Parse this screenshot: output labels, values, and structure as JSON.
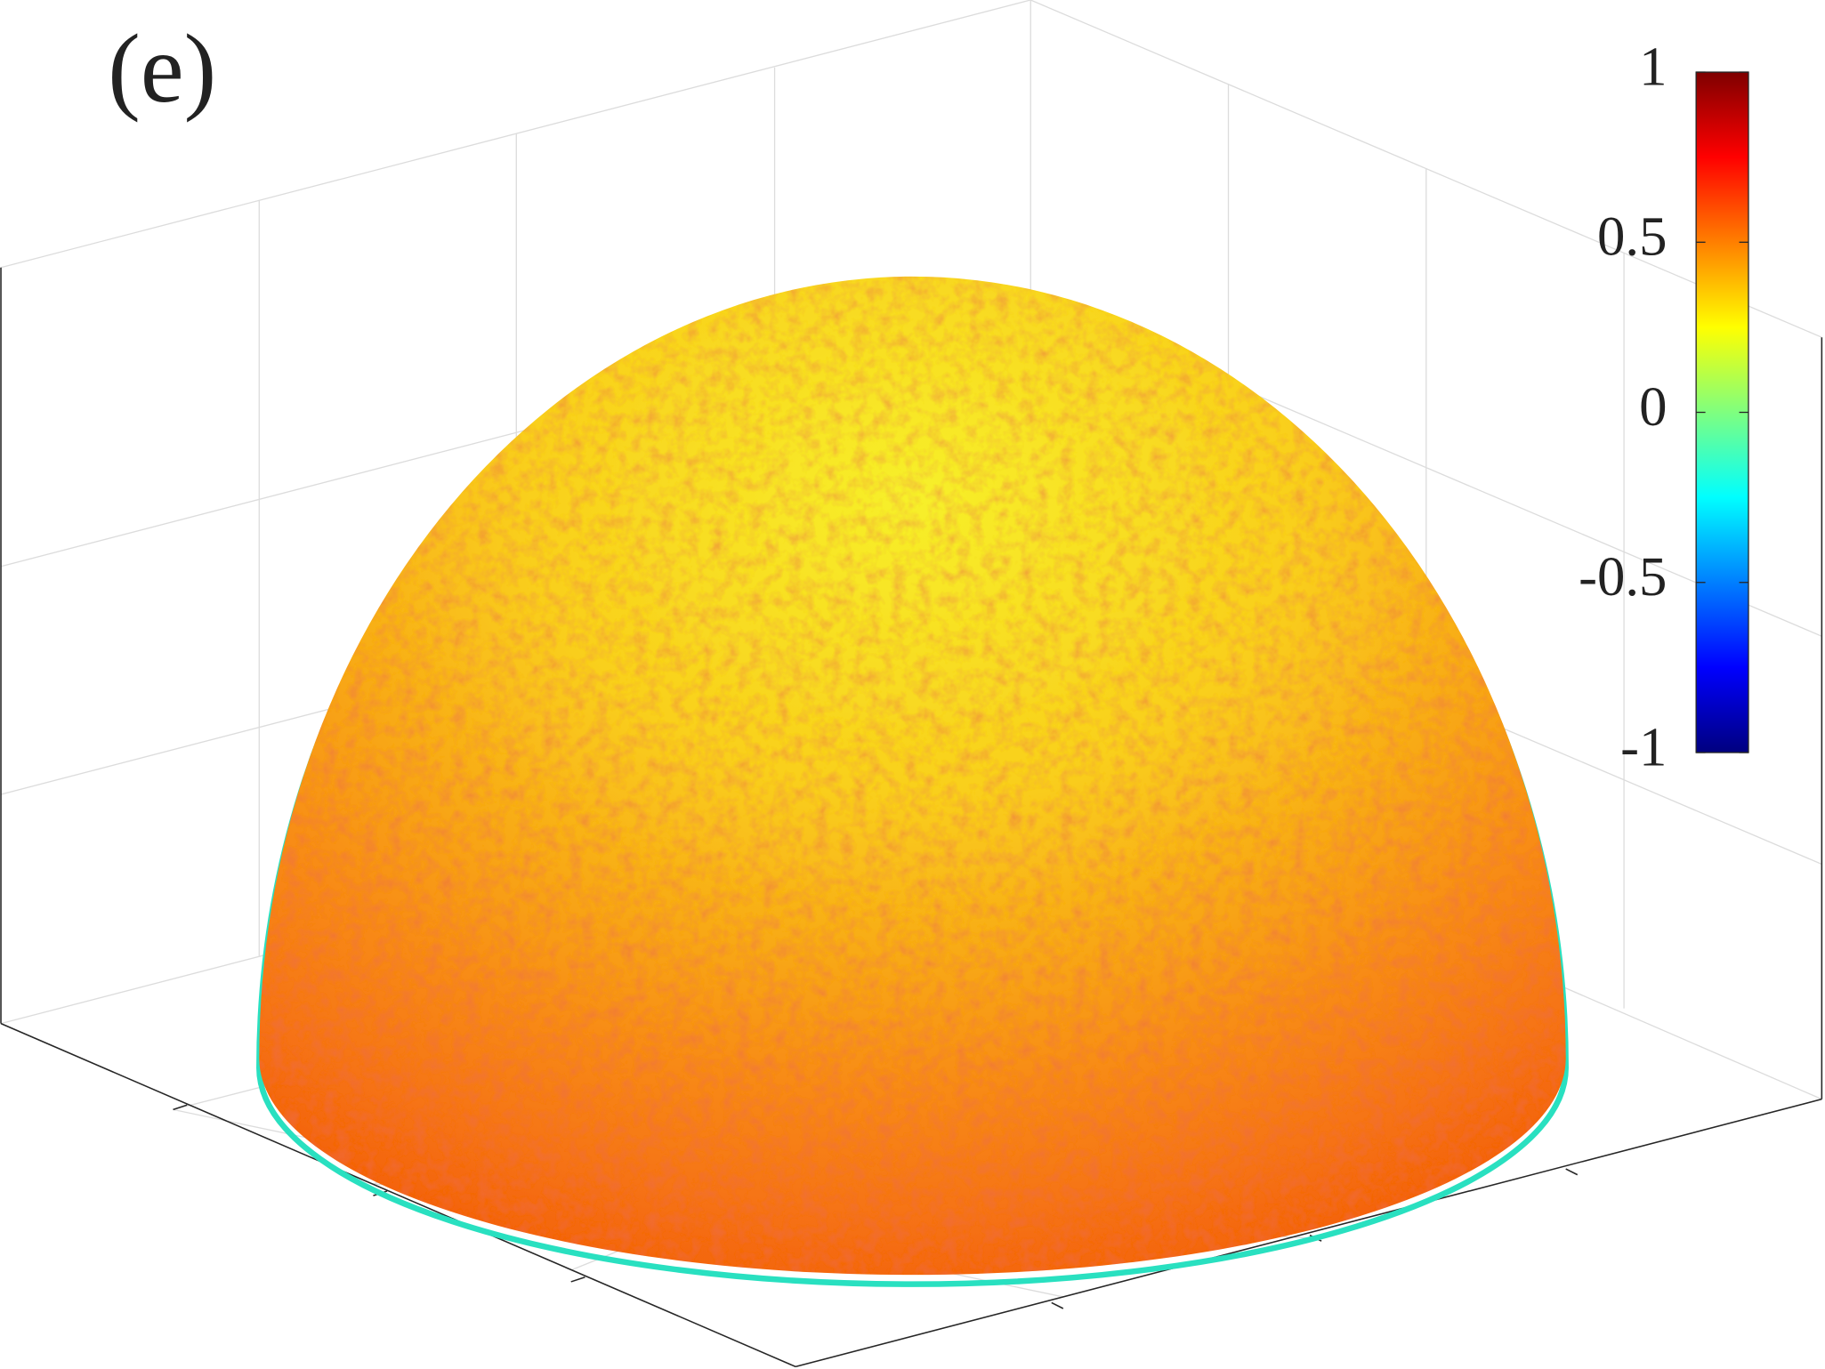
{
  "chart_data": {
    "type": "surface",
    "title": "(e)",
    "colorbar": {
      "lim": [
        -1,
        1
      ],
      "ticks": [
        -1,
        -0.5,
        0,
        0.5,
        1
      ],
      "colormap": "jet"
    }
  }
}
